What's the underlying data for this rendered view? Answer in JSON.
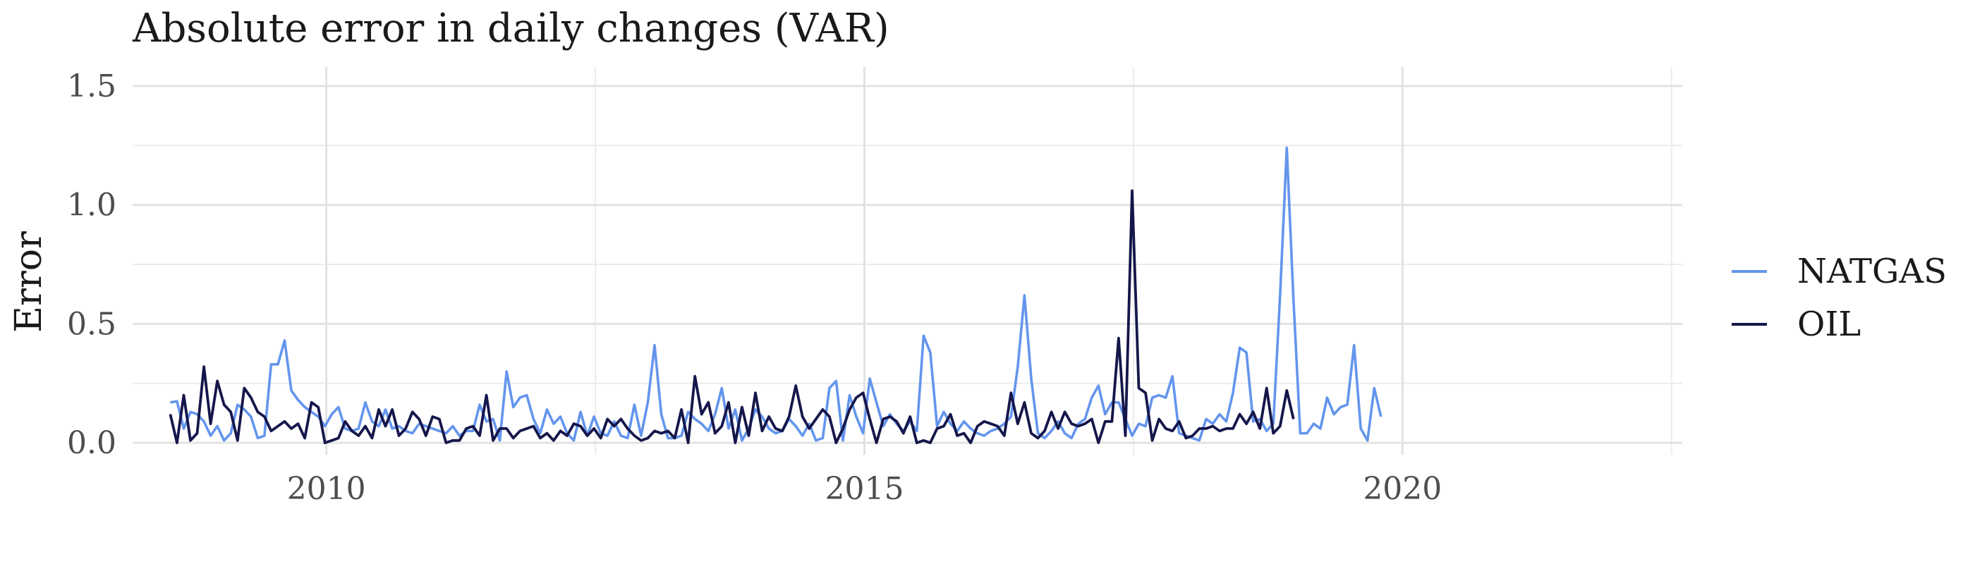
{
  "chart_data": {
    "type": "line",
    "title": "Absolute error in daily changes (VAR)",
    "xlabel": "",
    "ylabel": "Error",
    "xlim": [
      2008.2,
      2022.6
    ],
    "ylim": [
      -0.05,
      1.58
    ],
    "x_ticks": [
      2010,
      2015,
      2020
    ],
    "x_tick_labels": [
      "2010",
      "2015",
      "2020"
    ],
    "y_ticks": [
      0.0,
      0.5,
      1.0,
      1.5
    ],
    "y_tick_labels": [
      "0.0",
      "0.5",
      "1.0",
      "1.5"
    ],
    "grid": true,
    "legend_position": "right",
    "series": [
      {
        "name": "NATGAS",
        "color": "#6495ED",
        "x_start": 2008.55,
        "x_step": 0.0625,
        "values": [
          0.17,
          0.175,
          0.06,
          0.13,
          0.12,
          0.09,
          0.03,
          0.07,
          0.01,
          0.04,
          0.16,
          0.14,
          0.11,
          0.02,
          0.03,
          0.33,
          0.33,
          0.43,
          0.22,
          0.18,
          0.15,
          0.13,
          0.11,
          0.07,
          0.12,
          0.15,
          0.06,
          0.05,
          0.06,
          0.17,
          0.09,
          0.07,
          0.14,
          0.06,
          0.07,
          0.05,
          0.04,
          0.08,
          0.07,
          0.06,
          0.05,
          0.04,
          0.07,
          0.03,
          0.05,
          0.05,
          0.16,
          0.09,
          0.1,
          0.01,
          0.3,
          0.15,
          0.19,
          0.2,
          0.1,
          0.04,
          0.14,
          0.08,
          0.11,
          0.04,
          0.01,
          0.13,
          0.03,
          0.11,
          0.04,
          0.03,
          0.09,
          0.03,
          0.02,
          0.16,
          0.03,
          0.17,
          0.41,
          0.12,
          0.02,
          0.02,
          0.03,
          0.13,
          0.1,
          0.08,
          0.05,
          0.12,
          0.23,
          0.06,
          0.14,
          0.01,
          0.06,
          0.14,
          0.11,
          0.06,
          0.04,
          0.05,
          0.1,
          0.07,
          0.03,
          0.08,
          0.01,
          0.02,
          0.23,
          0.26,
          0.01,
          0.2,
          0.11,
          0.04,
          0.27,
          0.17,
          0.07,
          0.12,
          0.08,
          0.05,
          0.09,
          0.05,
          0.45,
          0.38,
          0.07,
          0.13,
          0.08,
          0.05,
          0.09,
          0.06,
          0.04,
          0.03,
          0.05,
          0.06,
          0.08,
          0.11,
          0.32,
          0.62,
          0.27,
          0.04,
          0.02,
          0.05,
          0.09,
          0.04,
          0.02,
          0.08,
          0.1,
          0.19,
          0.24,
          0.12,
          0.17,
          0.17,
          0.1,
          0.03,
          0.08,
          0.07,
          0.19,
          0.2,
          0.19,
          0.28,
          0.04,
          0.03,
          0.02,
          0.01,
          0.1,
          0.08,
          0.12,
          0.09,
          0.21,
          0.4,
          0.38,
          0.09,
          0.1,
          0.05,
          0.08,
          0.62,
          1.24,
          0.6,
          0.04,
          0.04,
          0.08,
          0.06,
          0.19,
          0.12,
          0.15,
          0.16,
          0.41,
          0.06,
          0.01,
          0.23,
          0.11
        ]
      },
      {
        "name": "OIL",
        "color": "#15164A",
        "x_start": 2008.55,
        "x_step": 0.0625,
        "values": [
          0.12,
          0.0,
          0.2,
          0.01,
          0.04,
          0.32,
          0.08,
          0.26,
          0.16,
          0.13,
          0.01,
          0.23,
          0.19,
          0.13,
          0.11,
          0.05,
          0.07,
          0.09,
          0.06,
          0.08,
          0.02,
          0.17,
          0.15,
          0.0,
          0.01,
          0.02,
          0.09,
          0.05,
          0.03,
          0.07,
          0.02,
          0.14,
          0.07,
          0.14,
          0.03,
          0.06,
          0.13,
          0.1,
          0.03,
          0.11,
          0.1,
          0.0,
          0.01,
          0.01,
          0.06,
          0.07,
          0.03,
          0.2,
          0.01,
          0.06,
          0.06,
          0.02,
          0.05,
          0.06,
          0.07,
          0.02,
          0.04,
          0.01,
          0.05,
          0.03,
          0.08,
          0.07,
          0.03,
          0.06,
          0.02,
          0.1,
          0.07,
          0.1,
          0.06,
          0.03,
          0.01,
          0.02,
          0.05,
          0.04,
          0.05,
          0.02,
          0.14,
          0.0,
          0.28,
          0.12,
          0.17,
          0.04,
          0.07,
          0.17,
          0.0,
          0.15,
          0.03,
          0.21,
          0.05,
          0.11,
          0.06,
          0.05,
          0.11,
          0.24,
          0.11,
          0.06,
          0.1,
          0.14,
          0.11,
          0.0,
          0.06,
          0.14,
          0.19,
          0.21,
          0.1,
          0.0,
          0.1,
          0.11,
          0.09,
          0.04,
          0.11,
          0.0,
          0.01,
          0.0,
          0.06,
          0.07,
          0.12,
          0.03,
          0.04,
          0.0,
          0.07,
          0.09,
          0.08,
          0.07,
          0.03,
          0.21,
          0.08,
          0.17,
          0.04,
          0.02,
          0.05,
          0.13,
          0.06,
          0.13,
          0.08,
          0.07,
          0.08,
          0.1,
          0.0,
          0.09,
          0.09,
          0.44,
          0.03,
          1.06,
          0.23,
          0.21,
          0.01,
          0.1,
          0.06,
          0.05,
          0.09,
          0.02,
          0.03,
          0.06,
          0.06,
          0.07,
          0.05,
          0.06,
          0.06,
          0.12,
          0.08,
          0.13,
          0.06,
          0.23,
          0.04,
          0.07,
          0.22,
          0.1
        ]
      }
    ]
  }
}
